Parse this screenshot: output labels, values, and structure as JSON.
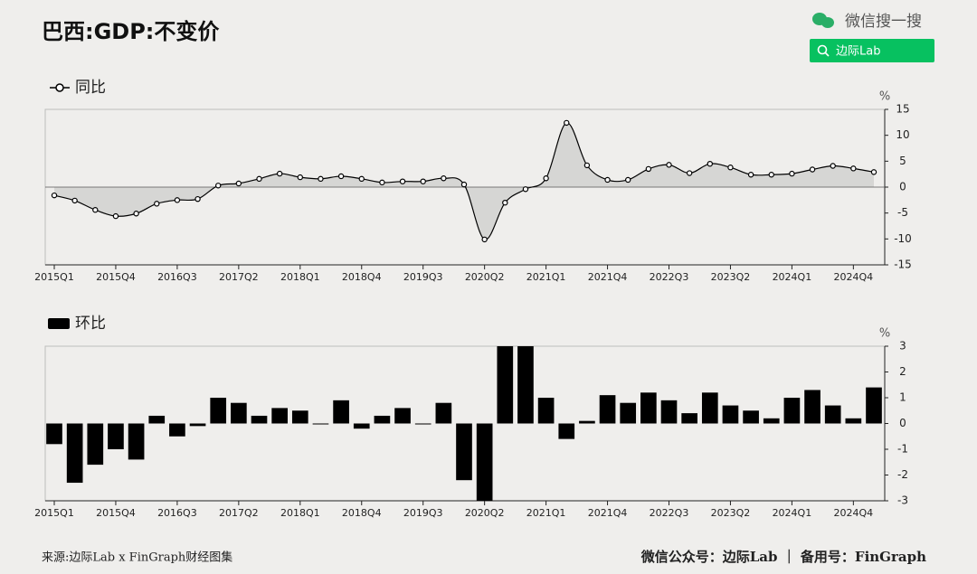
{
  "header": {
    "title": "巴西:GDP:不变价",
    "search_label": "微信搜一搜",
    "search_button": "边际Lab"
  },
  "chart_data": [
    {
      "type": "line",
      "unit": "%",
      "categories": [
        "2015Q1",
        null,
        null,
        "2015Q4",
        null,
        null,
        "2016Q3",
        null,
        null,
        "2017Q2",
        null,
        null,
        "2018Q1",
        null,
        null,
        "2018Q4",
        null,
        null,
        "2019Q3",
        null,
        null,
        "2020Q2",
        null,
        null,
        "2021Q1",
        null,
        null,
        "2021Q4",
        null,
        null,
        "2022Q3",
        null,
        null,
        "2023Q2",
        null,
        null,
        "2024Q1",
        null,
        null,
        "2024Q4",
        null
      ],
      "series": [
        {
          "name": "同比",
          "color": "#000000",
          "fill": "#d6d6d4",
          "values": [
            -1.6,
            -2.6,
            -4.4,
            -5.6,
            -5.1,
            -3.2,
            -2.5,
            -2.3,
            0.3,
            0.7,
            1.6,
            2.6,
            1.9,
            1.6,
            2.1,
            1.6,
            0.9,
            1.1,
            1.1,
            1.7,
            0.5,
            -10.1,
            -3.0,
            -0.4,
            1.7,
            12.4,
            4.2,
            1.4,
            1.4,
            3.5,
            4.3,
            2.7,
            4.5,
            3.8,
            2.4,
            2.4,
            2.6,
            3.4,
            4.1,
            3.6,
            2.9
          ]
        }
      ],
      "ylim": [
        -15,
        15
      ],
      "yticks": [
        -15,
        -10,
        -5,
        0,
        5,
        10,
        15
      ],
      "grid": false
    },
    {
      "type": "bar",
      "unit": "%",
      "categories": [
        "2015Q1",
        null,
        null,
        "2015Q4",
        null,
        null,
        "2016Q3",
        null,
        null,
        "2017Q2",
        null,
        null,
        "2018Q1",
        null,
        null,
        "2018Q4",
        null,
        null,
        "2019Q3",
        null,
        null,
        "2020Q2",
        null,
        null,
        "2021Q1",
        null,
        null,
        "2021Q4",
        null,
        null,
        "2022Q3",
        null,
        null,
        "2023Q2",
        null,
        null,
        "2024Q1",
        null,
        null,
        "2024Q4",
        null
      ],
      "series": [
        {
          "name": "环比",
          "color": "#000000",
          "values": [
            -0.8,
            -2.3,
            -1.6,
            -1.0,
            -1.4,
            0.3,
            -0.5,
            -0.1,
            1.0,
            0.8,
            0.3,
            0.6,
            0.5,
            0,
            0.9,
            -0.2,
            0.3,
            0.6,
            0,
            0.8,
            -2.2,
            -3,
            3,
            3,
            1.0,
            -0.6,
            0.1,
            1.1,
            0.8,
            1.2,
            0.9,
            0.4,
            1.2,
            0.7,
            0.5,
            0.2,
            1.0,
            1.3,
            0.7,
            0.2,
            1.4
          ]
        }
      ],
      "ylim": [
        -3,
        3
      ],
      "yticks": [
        -3,
        -2,
        -1,
        0,
        1,
        2,
        3
      ],
      "grid": false
    }
  ],
  "footer": {
    "source": "来源:边际Lab x FinGraph财经图集",
    "account": "微信公众号：边际Lab ｜ 备用号：FinGraph"
  }
}
